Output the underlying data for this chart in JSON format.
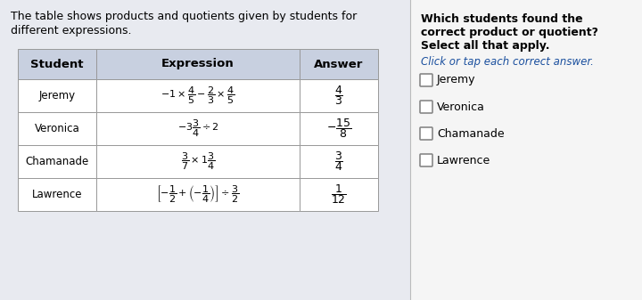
{
  "intro_line1": "The table shows products and quotients given by students for",
  "intro_line2": "different expressions.",
  "table_headers": [
    "Student",
    "Expression",
    "Answer"
  ],
  "students": [
    "Jeremy",
    "Veronica",
    "Chamanade",
    "Lawrence"
  ],
  "right_title_line1": "Which students found the",
  "right_title_line2": "correct product or quotient?",
  "right_title_line3": "Select all that apply.",
  "right_subtitle": "Click or tap each correct answer.",
  "right_options": [
    "Jeremy",
    "Veronica",
    "Chamanade",
    "Lawrence"
  ],
  "left_bg": "#e8eaf0",
  "right_bg": "#f5f5f5",
  "header_bg": "#c8d0e0",
  "row_bg": "#ffffff",
  "border_color": "#aaaaaa",
  "title_color": "#000000",
  "subtitle_color": "#1a4f9e",
  "option_color": "#000000",
  "divider_color": "#bbbbbb"
}
